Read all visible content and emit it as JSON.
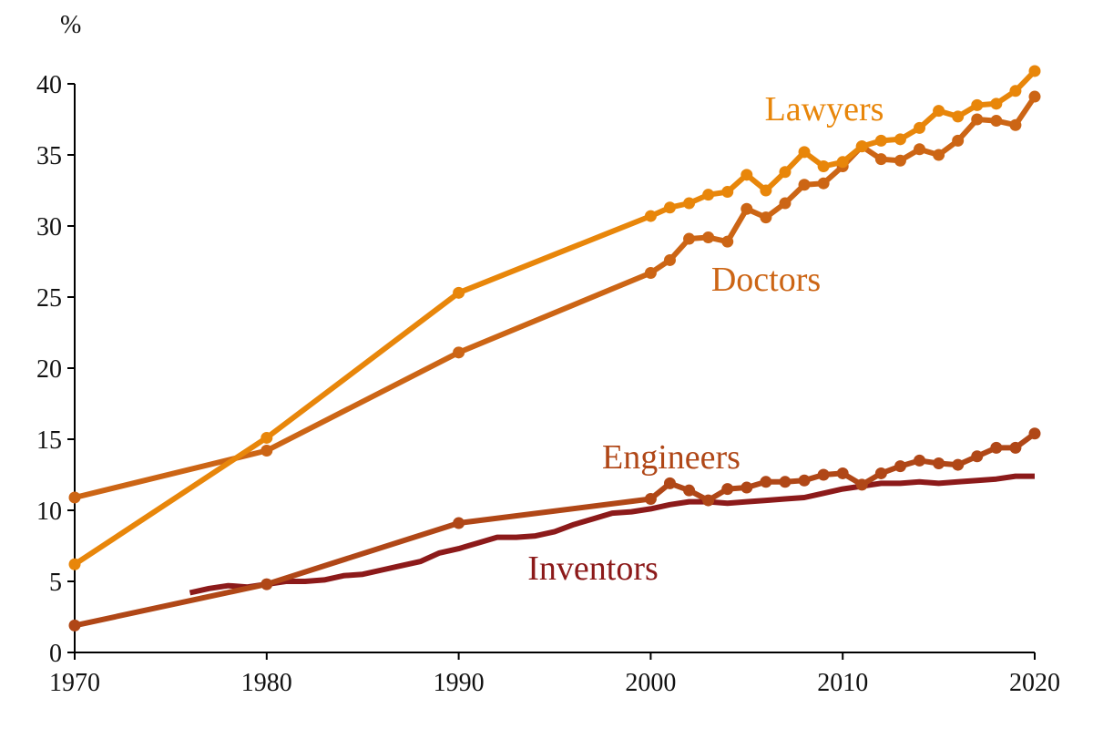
{
  "chart_data": {
    "type": "line",
    "title": "",
    "xlabel": "",
    "ylabel": "%",
    "xlim": [
      1970,
      2020
    ],
    "ylim": [
      0,
      42
    ],
    "grid": false,
    "legend": "inline labels",
    "x_ticks": [
      1970,
      1980,
      1990,
      2000,
      2010,
      2020
    ],
    "x_tick_labels": [
      "1970",
      "1980",
      "1990",
      "2000",
      "2010",
      "2020"
    ],
    "y_ticks": [
      0,
      5,
      10,
      15,
      20,
      25,
      30,
      35,
      40
    ],
    "y_tick_labels": [
      "0",
      "5",
      "10",
      "15",
      "20",
      "25",
      "30",
      "35",
      "40"
    ],
    "series": [
      {
        "name": "Lawyers",
        "color": "#E8860A",
        "markers": true,
        "x": [
          1970,
          1980,
          1990,
          2000,
          2001,
          2002,
          2003,
          2004,
          2005,
          2006,
          2007,
          2008,
          2009,
          2010,
          2011,
          2012,
          2013,
          2014,
          2015,
          2016,
          2017,
          2018,
          2019,
          2020
        ],
        "y": [
          6.2,
          15.1,
          25.3,
          30.7,
          31.3,
          31.6,
          32.2,
          32.4,
          33.6,
          32.5,
          33.8,
          35.2,
          34.2,
          34.5,
          35.6,
          36.0,
          36.1,
          36.9,
          38.1,
          37.7,
          38.5,
          38.6,
          39.5,
          40.9
        ]
      },
      {
        "name": "Doctors",
        "color": "#CC6515",
        "markers": true,
        "x": [
          1970,
          1980,
          1990,
          2000,
          2001,
          2002,
          2003,
          2004,
          2005,
          2006,
          2007,
          2008,
          2009,
          2010,
          2011,
          2012,
          2013,
          2014,
          2015,
          2016,
          2017,
          2018,
          2019,
          2020
        ],
        "y": [
          10.9,
          14.2,
          21.1,
          26.7,
          27.6,
          29.1,
          29.2,
          28.9,
          31.2,
          30.6,
          31.6,
          32.9,
          33.0,
          34.2,
          35.6,
          34.7,
          34.6,
          35.4,
          35.0,
          36.0,
          37.5,
          37.4,
          37.1,
          39.1
        ]
      },
      {
        "name": "Engineers",
        "color": "#B04717",
        "markers": true,
        "x": [
          1970,
          1980,
          1990,
          2000,
          2001,
          2002,
          2003,
          2004,
          2005,
          2006,
          2007,
          2008,
          2009,
          2010,
          2011,
          2012,
          2013,
          2014,
          2015,
          2016,
          2017,
          2018,
          2019,
          2020
        ],
        "y": [
          1.9,
          4.8,
          9.1,
          10.8,
          11.9,
          11.4,
          10.7,
          11.5,
          11.6,
          12.0,
          12.0,
          12.1,
          12.5,
          12.6,
          11.8,
          12.6,
          13.1,
          13.5,
          13.3,
          13.2,
          13.8,
          14.4,
          14.4,
          15.4
        ]
      },
      {
        "name": "Inventors",
        "color": "#8C1A1A",
        "markers": false,
        "x": [
          1976,
          1977,
          1978,
          1979,
          1980,
          1981,
          1982,
          1983,
          1984,
          1985,
          1986,
          1987,
          1988,
          1989,
          1990,
          1991,
          1992,
          1993,
          1994,
          1995,
          1996,
          1997,
          1998,
          1999,
          2000,
          2001,
          2002,
          2003,
          2004,
          2005,
          2006,
          2007,
          2008,
          2009,
          2010,
          2011,
          2012,
          2013,
          2014,
          2015,
          2016,
          2017,
          2018,
          2019,
          2020
        ],
        "y": [
          4.2,
          4.5,
          4.7,
          4.6,
          4.8,
          5.0,
          5.0,
          5.1,
          5.4,
          5.5,
          5.8,
          6.1,
          6.4,
          7.0,
          7.3,
          7.7,
          8.1,
          8.1,
          8.2,
          8.5,
          9.0,
          9.4,
          9.8,
          9.9,
          10.1,
          10.4,
          10.6,
          10.6,
          10.5,
          10.6,
          10.7,
          10.8,
          10.9,
          11.2,
          11.5,
          11.7,
          11.9,
          11.9,
          12.0,
          11.9,
          12.0,
          12.1,
          12.2,
          12.4,
          12.4
        ]
      }
    ]
  }
}
